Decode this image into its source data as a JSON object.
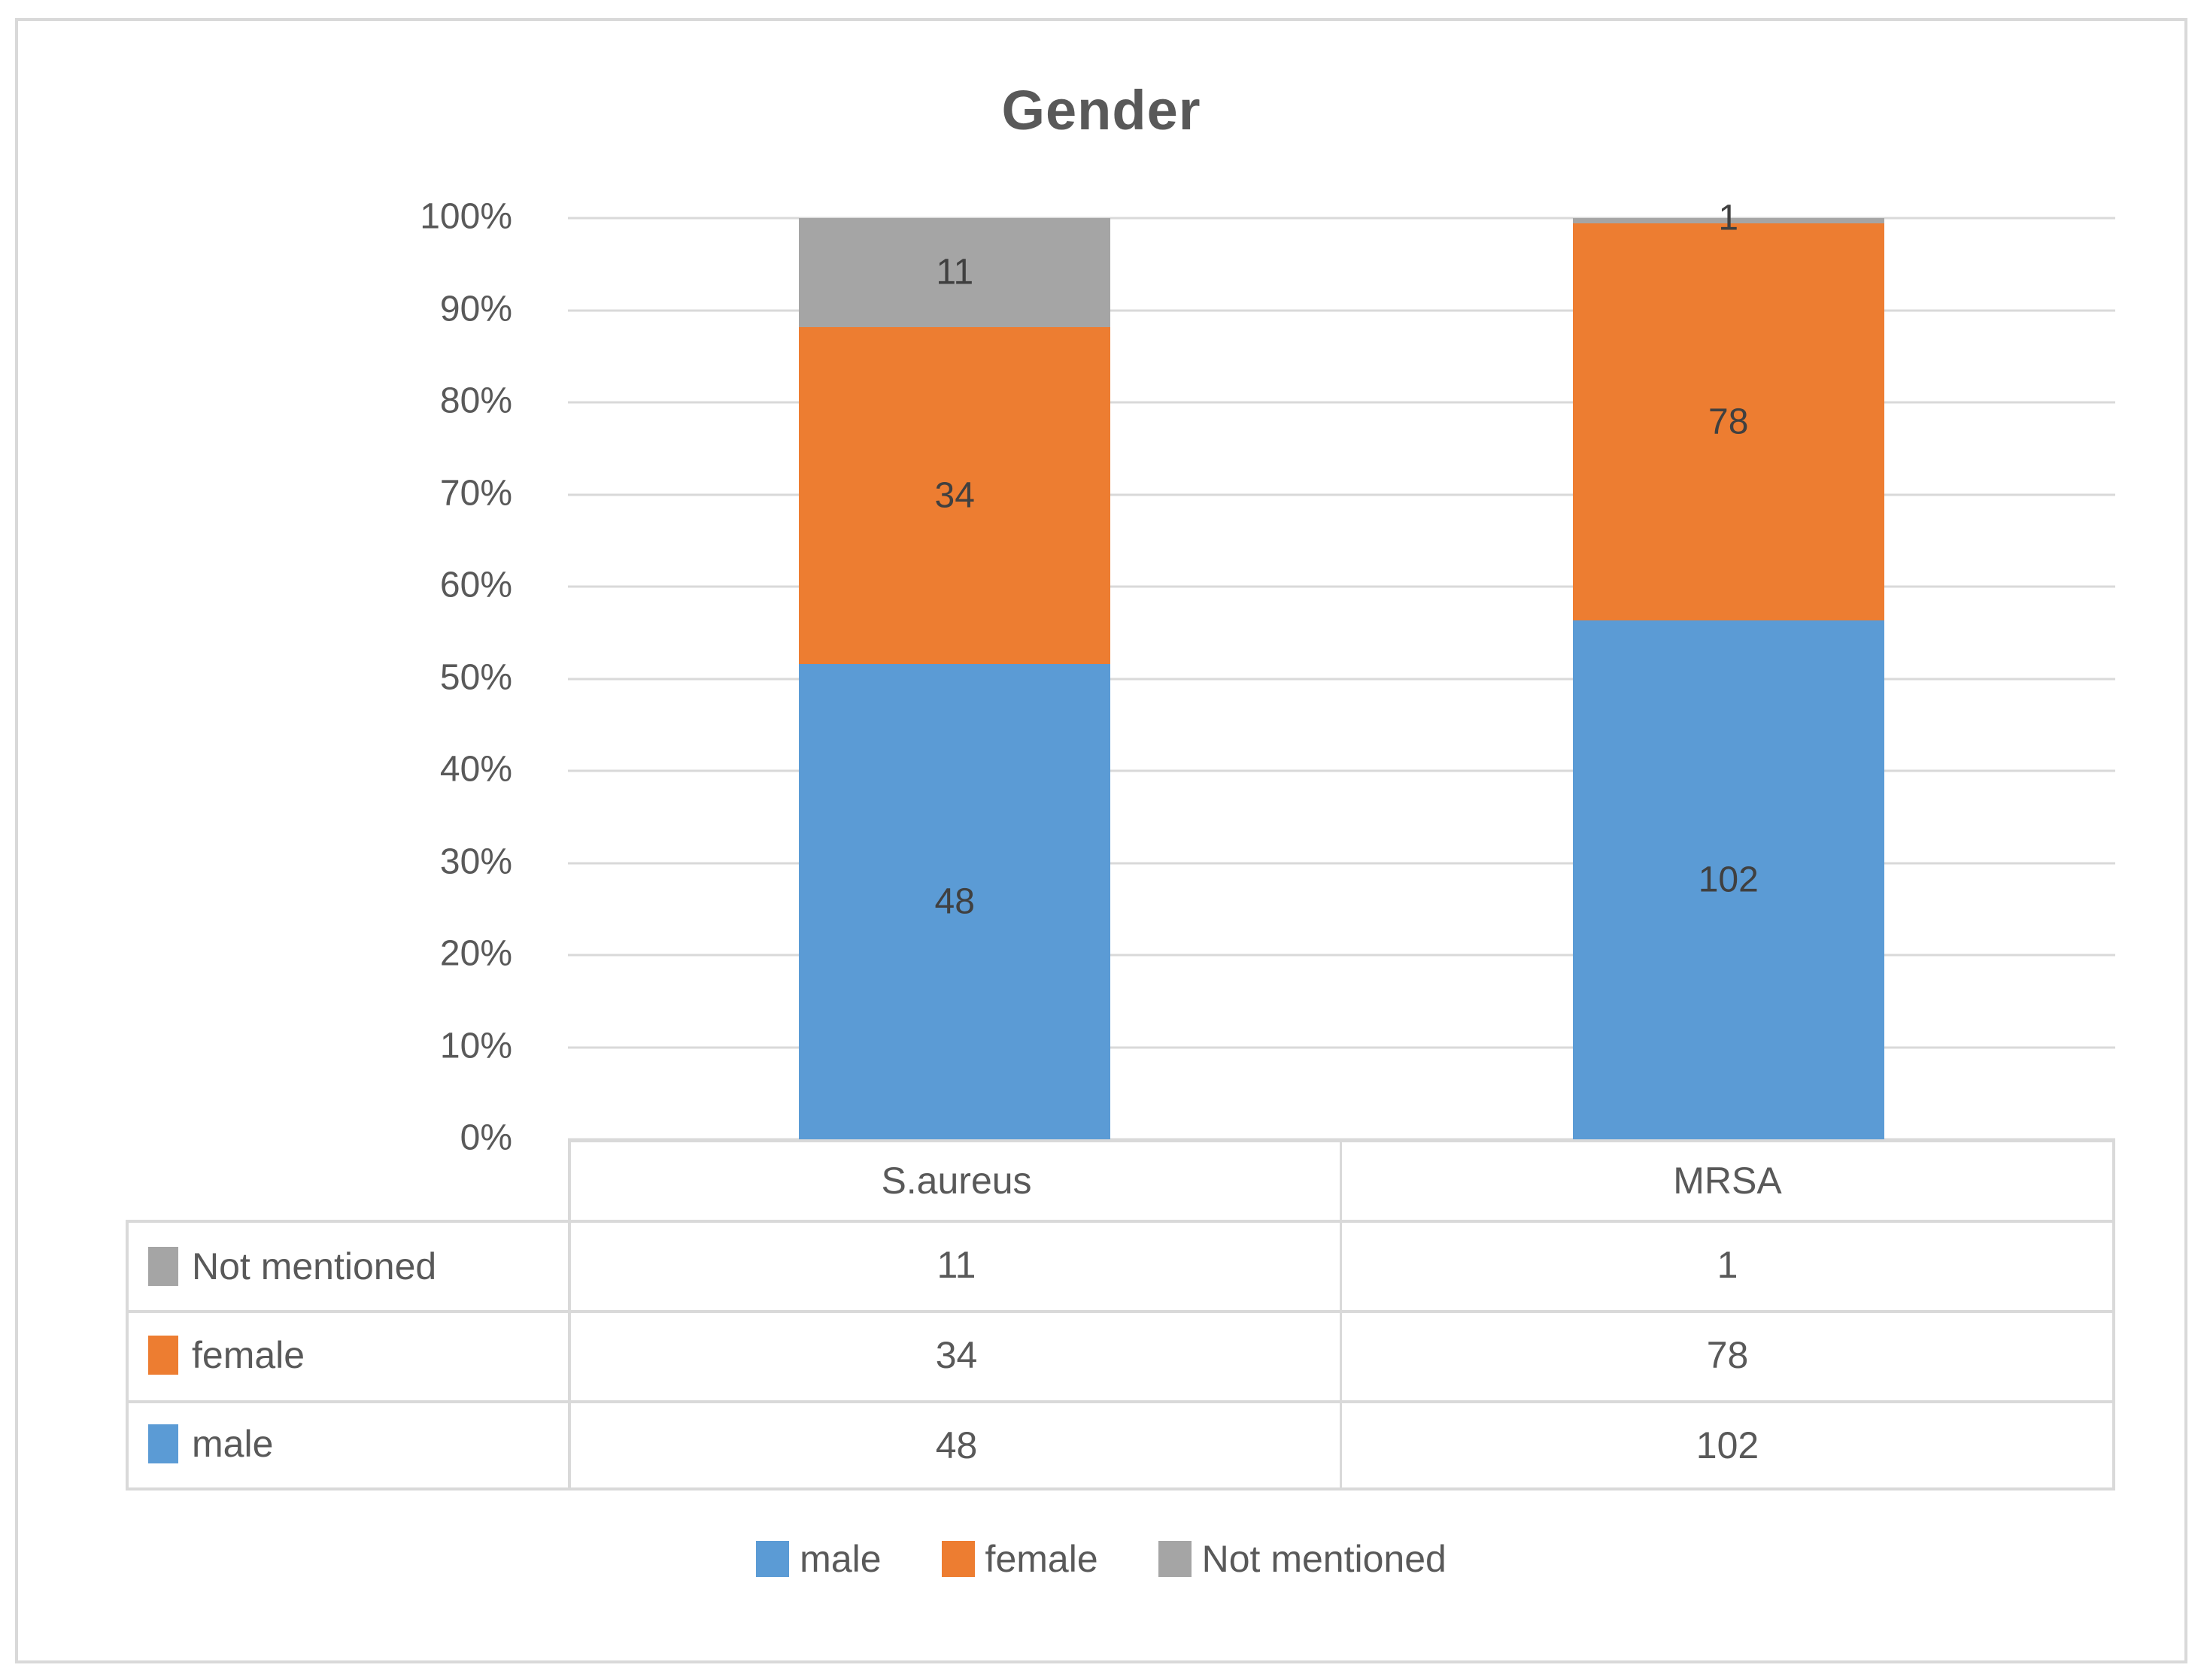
{
  "title": "Gender",
  "chart_data": {
    "type": "bar",
    "subtype": "stacked-100-percent-column",
    "title": "Gender",
    "categories": [
      "S.aureus",
      "MRSA"
    ],
    "series": [
      {
        "name": "male",
        "color": "#5B9BD5",
        "values": [
          48,
          102
        ]
      },
      {
        "name": "female",
        "color": "#ED7D31",
        "values": [
          34,
          78
        ]
      },
      {
        "name": "Not mentioned",
        "color": "#A5A5A5",
        "values": [
          11,
          1
        ]
      }
    ],
    "y_ticks": [
      "0%",
      "10%",
      "20%",
      "30%",
      "40%",
      "50%",
      "60%",
      "70%",
      "80%",
      "90%",
      "100%"
    ],
    "ylim": [
      0,
      100
    ],
    "xlabel": "",
    "ylabel": "",
    "grid": true,
    "legend_position": "bottom",
    "data_table_shown": true
  },
  "table": {
    "column_headers": [
      "S.aureus",
      "MRSA"
    ],
    "rows": [
      {
        "label": "Not mentioned",
        "color": "#A5A5A5",
        "values": [
          "11",
          "1"
        ]
      },
      {
        "label": "female",
        "color": "#ED7D31",
        "values": [
          "34",
          "78"
        ]
      },
      {
        "label": "male",
        "color": "#5B9BD5",
        "values": [
          "48",
          "102"
        ]
      }
    ]
  },
  "legend": {
    "items": [
      {
        "label": "male",
        "color": "#5B9BD5"
      },
      {
        "label": "female",
        "color": "#ED7D31"
      },
      {
        "label": "Not mentioned",
        "color": "#A5A5A5"
      }
    ]
  },
  "colors": {
    "male": "#5B9BD5",
    "female": "#ED7D31",
    "not_mentioned": "#A5A5A5",
    "gridline": "#D9D9D9",
    "axis_text": "#595959",
    "data_label": "#404040",
    "frame_border": "#D9D9D9"
  }
}
